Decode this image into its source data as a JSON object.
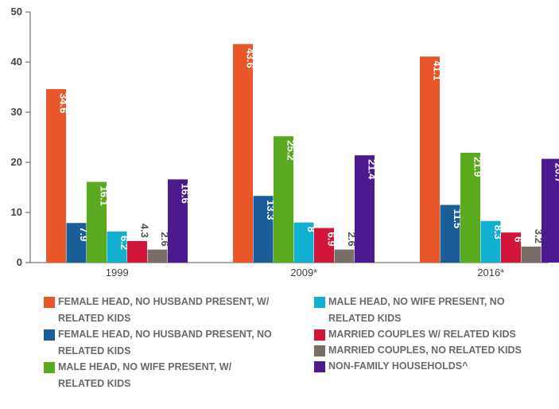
{
  "chart_data": {
    "type": "bar",
    "categories": [
      "1999",
      "2009*",
      "2016*"
    ],
    "series": [
      {
        "name": "FEMALE HEAD, NO HUSBAND PRESENT, W/ RELATED KIDS",
        "color": "#e8562a",
        "values": [
          34.6,
          43.6,
          41.1
        ]
      },
      {
        "name": "FEMALE HEAD, NO HUSBAND PRESENT, NO RELATED KIDS",
        "color": "#1a5e9a",
        "values": [
          7.9,
          13.3,
          11.5
        ]
      },
      {
        "name": "MALE HEAD, NO WIFE PRESENT, W/ RELATED KIDS",
        "color": "#5aaa1e",
        "values": [
          16.1,
          25.2,
          21.9
        ]
      },
      {
        "name": "MALE HEAD, NO WIFE PRESENT, NO RELATED KIDS",
        "color": "#12b0d0",
        "values": [
          6.2,
          8,
          8.3
        ]
      },
      {
        "name": "MARRIED COUPLES W/ RELATED KIDS",
        "color": "#d4153a",
        "values": [
          4.3,
          6.9,
          6
        ]
      },
      {
        "name": "MARRIED COUPLES, NO RELATED KIDS",
        "color": "#7a6e68",
        "values": [
          2.6,
          2.6,
          3.2
        ]
      },
      {
        "name": "NON-FAMILY HOUSEHOLDS^",
        "color": "#4a1a8e",
        "values": [
          16.6,
          21.4,
          20.7
        ]
      }
    ],
    "ylim": [
      0,
      50
    ],
    "yticks": [
      0,
      10,
      20,
      30,
      40,
      50
    ],
    "grid": false
  }
}
